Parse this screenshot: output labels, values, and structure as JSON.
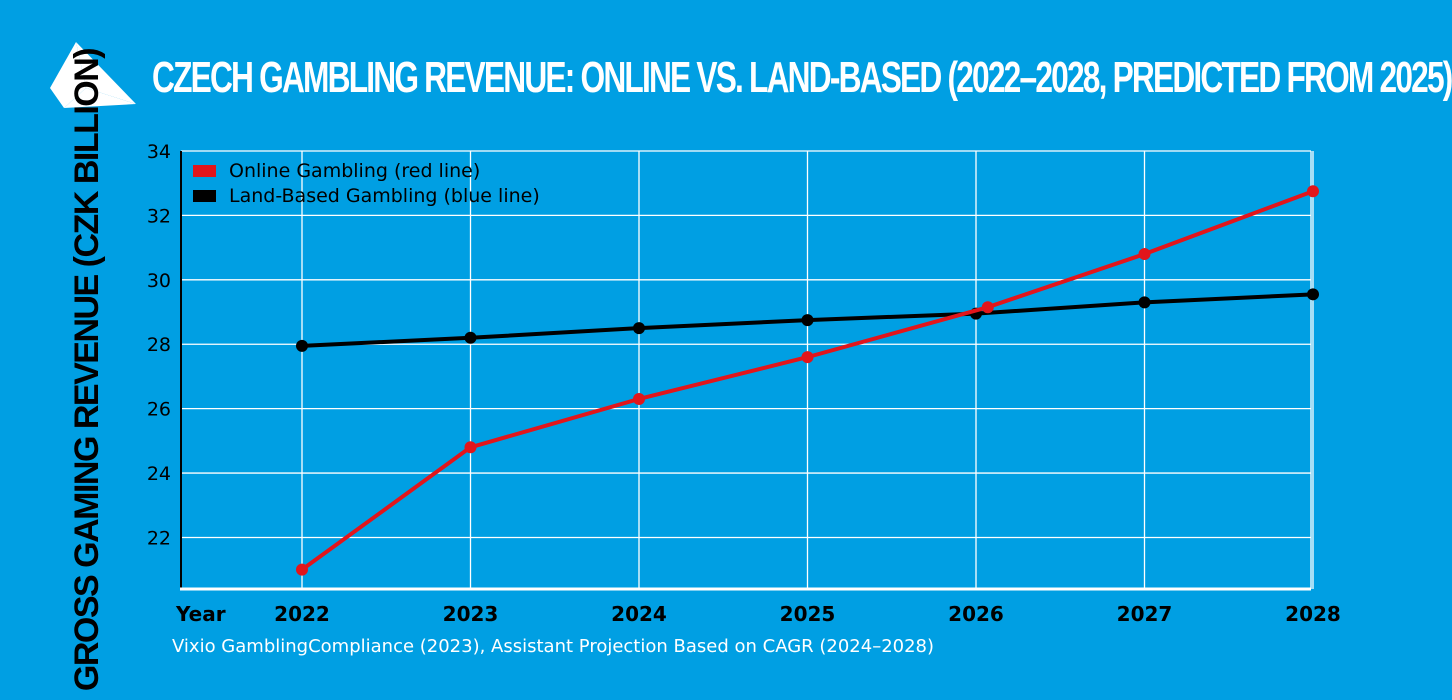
{
  "title": "CZECH GAMBLING REVENUE: ONLINE VS. LAND-BASED (2022–2028, PREDICTED FROM 2025)",
  "source": "Vixio GamblingCompliance (2023), Assistant Projection Based on CAGR (2024–2028)",
  "colors": {
    "background": "#009fe3",
    "grid": "#ffffff",
    "online": "#e2151b",
    "land": "#000000",
    "text": "#000000",
    "title": "#ffffff"
  },
  "chart_data": {
    "type": "line",
    "title": "CZECH GAMBLING REVENUE: ONLINE VS. LAND-BASED (2022–2028, PREDICTED FROM 2025)",
    "ylabel": "GROSS GAMING REVENUE (CZK BILLION)",
    "xlabel": "Year",
    "x": [
      "2022",
      "2023",
      "2024",
      "2025",
      "2026",
      "2027",
      "2028"
    ],
    "yticks": [
      22,
      24,
      26,
      28,
      30,
      32,
      34
    ],
    "ylim": [
      20.4,
      34
    ],
    "grid": true,
    "legend_position": "top-left",
    "series": [
      {
        "name": "Online Gambling (red line)",
        "color": "#e2151b",
        "values": [
          21.0,
          24.8,
          26.3,
          27.6,
          29.15,
          30.8,
          32.75
        ],
        "x_offsets": [
          0,
          0,
          0,
          0,
          0.07,
          0,
          0
        ]
      },
      {
        "name": "Land-Based Gambling (blue line)",
        "color": "#000000",
        "values": [
          27.95,
          28.2,
          28.5,
          28.75,
          28.95,
          29.3,
          29.55
        ],
        "x_offsets": [
          0,
          0,
          0,
          0,
          0,
          0,
          0
        ]
      }
    ]
  }
}
